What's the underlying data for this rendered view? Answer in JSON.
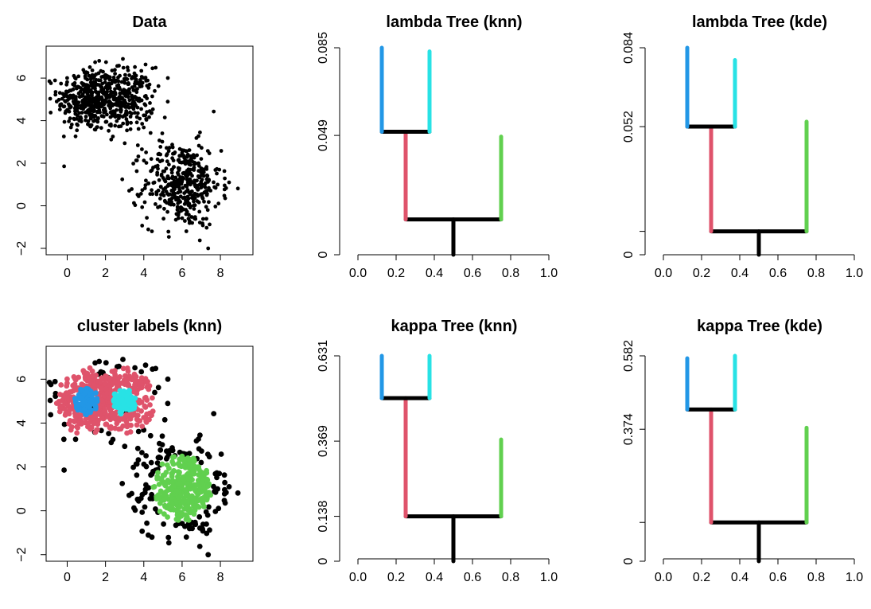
{
  "colors": {
    "black": "#000000",
    "red": "#DF536B",
    "blue": "#2297E6",
    "cyan": "#28E2E5",
    "green": "#61D04F"
  },
  "chart_data": [
    {
      "id": "data",
      "type": "scatter",
      "title": "Data",
      "xlim": [
        -1.1,
        9.7
      ],
      "ylim": [
        -2.3,
        7.5
      ],
      "xticks": [
        0,
        2,
        4,
        6,
        8
      ],
      "yticks": [
        -2,
        0,
        2,
        4,
        6
      ],
      "colored": false,
      "groups": [
        {
          "center": [
            1.0,
            5.0
          ],
          "sd": 0.75,
          "n": 320
        },
        {
          "center": [
            3.0,
            5.0
          ],
          "sd": 0.75,
          "n": 300
        },
        {
          "center": [
            6.0,
            1.0
          ],
          "sd": 1.0,
          "n": 420
        }
      ]
    },
    {
      "id": "labels",
      "type": "scatter",
      "title": "cluster labels (knn)",
      "xlim": [
        -1.1,
        9.7
      ],
      "ylim": [
        -2.3,
        7.5
      ],
      "xticks": [
        0,
        2,
        4,
        6,
        8
      ],
      "yticks": [
        -2,
        0,
        2,
        4,
        6
      ],
      "colored": true,
      "groups": [
        {
          "center": [
            1.0,
            5.0
          ],
          "sd": 0.75,
          "n": 320
        },
        {
          "center": [
            3.0,
            5.0
          ],
          "sd": 0.75,
          "n": 300
        },
        {
          "center": [
            6.0,
            1.0
          ],
          "sd": 1.0,
          "n": 420
        }
      ]
    },
    {
      "id": "lambda-knn",
      "type": "tree",
      "title": "lambda Tree (knn)",
      "ylim": [
        0,
        0.085
      ],
      "ytick_values": [
        0,
        0.049,
        0.085
      ],
      "ytick_labels": [
        "0",
        "0.049",
        "0.085"
      ],
      "xticks": [
        "0.0",
        "0.2",
        "0.4",
        "0.6",
        "0.8",
        "1.0"
      ],
      "root_merge": 0.0145,
      "sub_merge": 0.0505,
      "tops": {
        "blue": 0.085,
        "cyan": 0.0835,
        "green": 0.0485
      }
    },
    {
      "id": "lambda-kde",
      "type": "tree",
      "title": "lambda Tree (kde)",
      "ylim": [
        0,
        0.084
      ],
      "ytick_values": [
        0,
        0.0095,
        0.052,
        0.084
      ],
      "ytick_labels": [
        "0",
        "",
        "0.052",
        "0.084"
      ],
      "xticks": [
        "0.0",
        "0.2",
        "0.4",
        "0.6",
        "0.8",
        "1.0"
      ],
      "root_merge": 0.0095,
      "sub_merge": 0.052,
      "tops": {
        "blue": 0.084,
        "cyan": 0.079,
        "green": 0.054
      }
    },
    {
      "id": "kappa-knn",
      "type": "tree",
      "title": "kappa Tree (knn)",
      "ylim": [
        0,
        0.631
      ],
      "ytick_values": [
        0,
        0.138,
        0.369,
        0.631
      ],
      "ytick_labels": [
        "0",
        "0.138",
        "0.369",
        "0.631"
      ],
      "xticks": [
        "0.0",
        "0.2",
        "0.4",
        "0.6",
        "0.8",
        "1.0"
      ],
      "root_merge": 0.138,
      "sub_merge": 0.501,
      "tops": {
        "blue": 0.631,
        "cyan": 0.631,
        "green": 0.374
      }
    },
    {
      "id": "kappa-kde",
      "type": "tree",
      "title": "kappa Tree (kde)",
      "ylim": [
        0,
        0.582
      ],
      "ytick_values": [
        0,
        0.11,
        0.374,
        0.582
      ],
      "ytick_labels": [
        "0",
        "",
        "0.374",
        "0.582"
      ],
      "xticks": [
        "0.0",
        "0.2",
        "0.4",
        "0.6",
        "0.8",
        "1.0"
      ],
      "root_merge": 0.11,
      "sub_merge": 0.43,
      "tops": {
        "blue": 0.575,
        "cyan": 0.582,
        "green": 0.378
      }
    }
  ]
}
